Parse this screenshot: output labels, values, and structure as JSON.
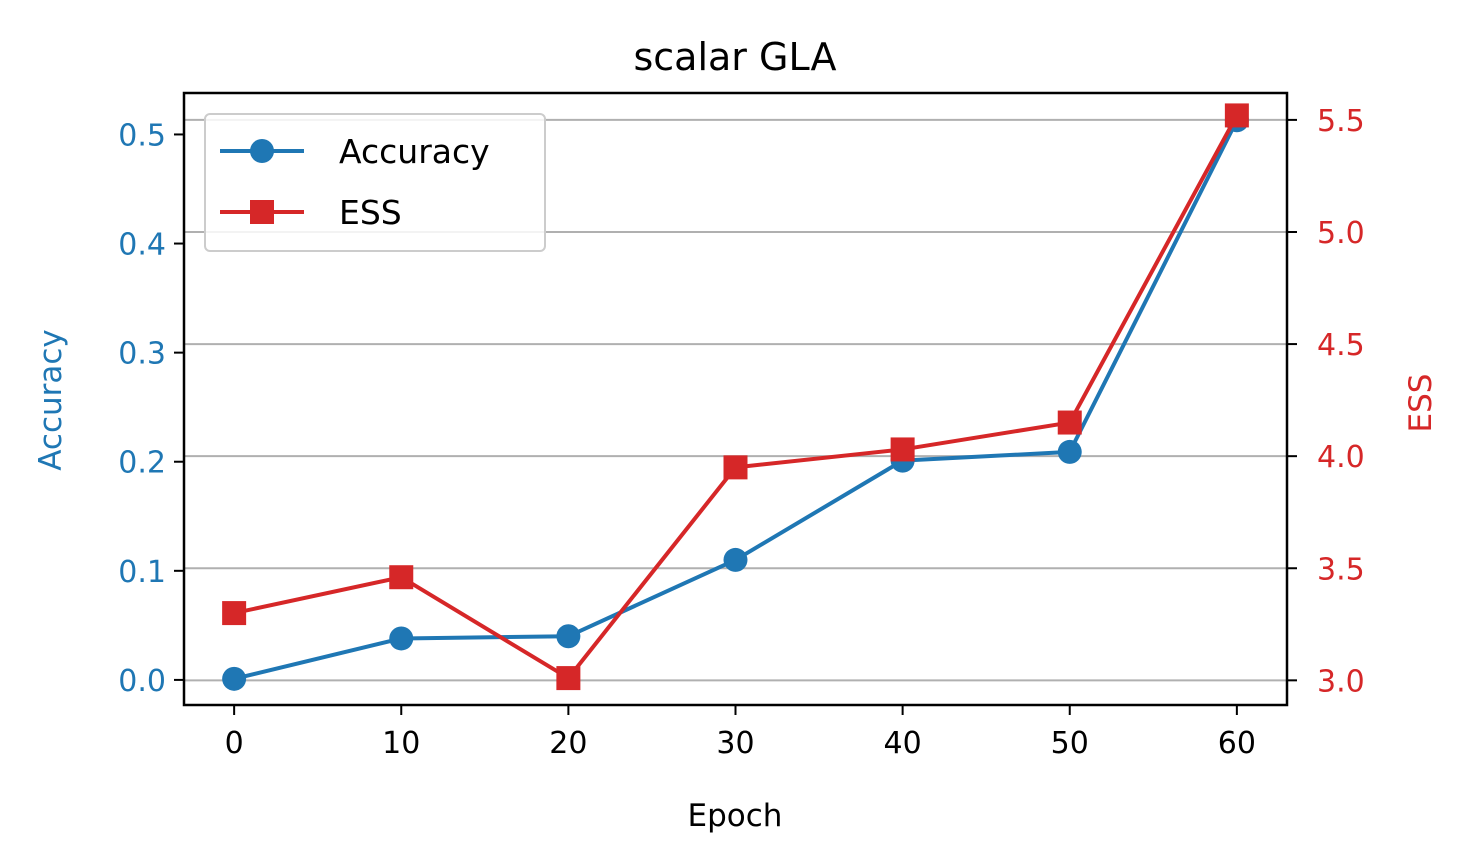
{
  "chart_data": {
    "type": "line",
    "title": "scalar GLA",
    "xlabel": "Epoch",
    "ylabel_left": "Accuracy",
    "ylabel_right": "ESS",
    "x": [
      0,
      10,
      20,
      30,
      40,
      50,
      60
    ],
    "xlim": [
      -3,
      63
    ],
    "xticks": [
      "0",
      "10",
      "20",
      "30",
      "40",
      "50",
      "60"
    ],
    "ylim_left": [
      -0.023,
      0.538
    ],
    "yticks_left": [
      "0.0",
      "0.1",
      "0.2",
      "0.3",
      "0.4",
      "0.5"
    ],
    "ylim_right": [
      2.89,
      5.62
    ],
    "yticks_right": [
      "3.0",
      "3.5",
      "4.0",
      "4.5",
      "5.0",
      "5.5"
    ],
    "grid": "horizontal, right axis",
    "legend_position": "upper-left",
    "series": [
      {
        "name": "Accuracy",
        "axis": "left",
        "marker": "circle",
        "color": "#1f77b4",
        "values": [
          0.001,
          0.038,
          0.04,
          0.11,
          0.201,
          0.209,
          0.513
        ]
      },
      {
        "name": "ESS",
        "axis": "right",
        "marker": "square",
        "color": "#d62728",
        "values": [
          3.3,
          3.46,
          3.01,
          3.95,
          4.03,
          4.15,
          5.52
        ]
      }
    ]
  }
}
